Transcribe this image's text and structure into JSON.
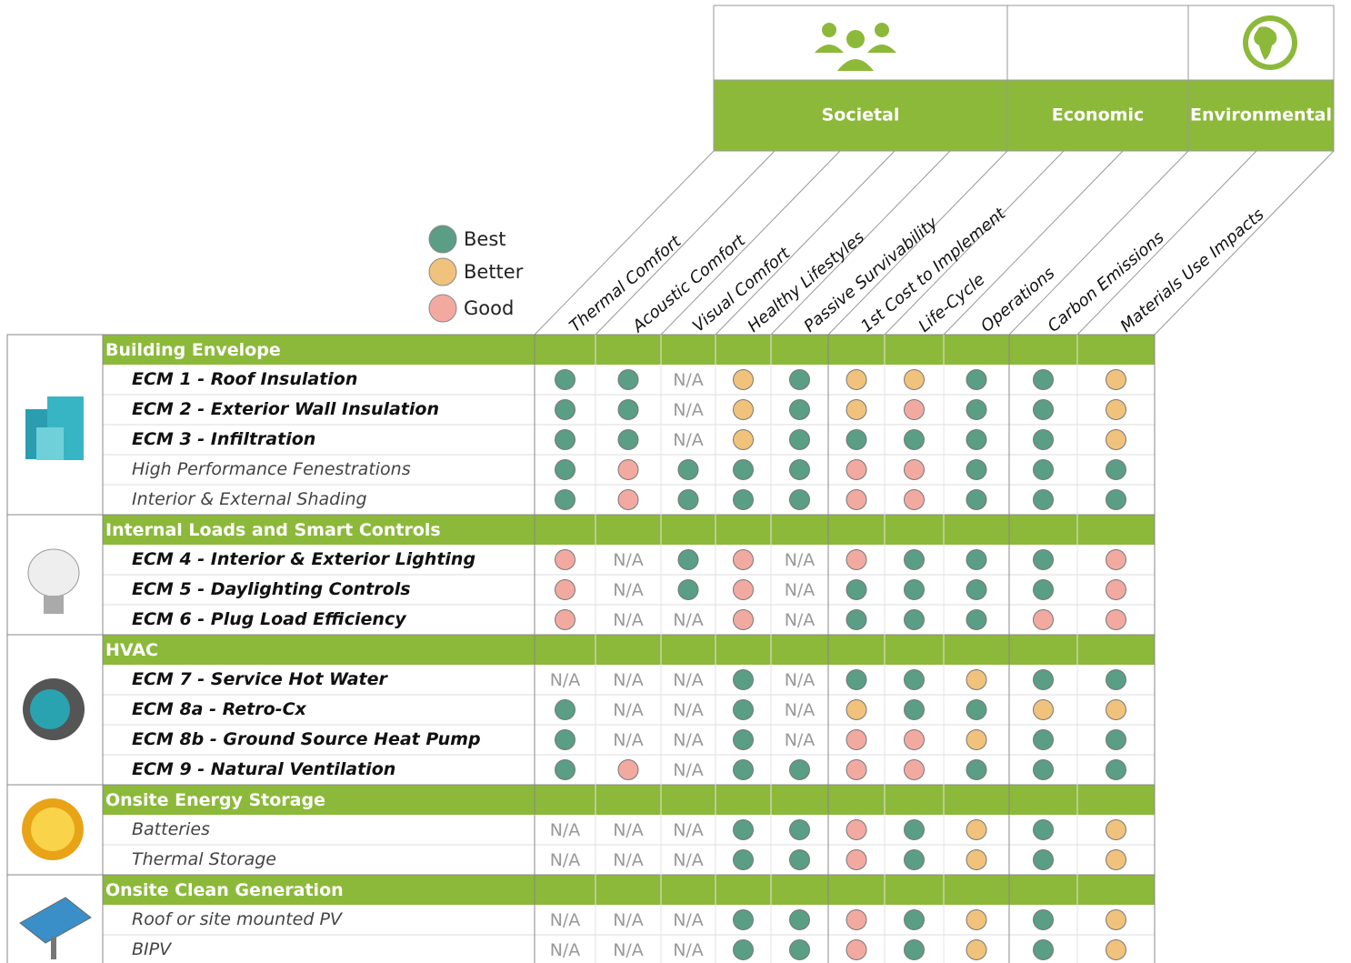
{
  "header_groups": [
    {
      "label": "Societal",
      "span": 5
    },
    {
      "label": "Economic",
      "span": 3
    },
    {
      "label": "Environmental",
      "span": 2
    }
  ],
  "legend": [
    {
      "label": "Best",
      "color": "#5a9e85"
    },
    {
      "label": "Better",
      "color": "#f0c27b"
    },
    {
      "label": "Good",
      "color": "#f2aaa0"
    }
  ],
  "columns": [
    "Thermal Comfort",
    "Acoustic Comfort",
    "Visual Comfort",
    "Healthy Lifestyles",
    "Passive Survivability",
    "1st Cost to Implement",
    "Life-Cycle",
    "Operations",
    "Carbon Emissions",
    "Materials Use Impacts"
  ],
  "sections": [
    {
      "title": "Building Envelope",
      "rows": [
        {
          "label": "ECM 1 - Roof Insulation",
          "bold": true,
          "cells": [
            "Best",
            "Best",
            "N/A",
            "Better",
            "Best",
            "Better",
            "Better",
            "Best",
            "Best",
            "Better"
          ]
        },
        {
          "label": "ECM 2 - Exterior Wall Insulation",
          "bold": true,
          "cells": [
            "Best",
            "Best",
            "N/A",
            "Better",
            "Best",
            "Better",
            "Good",
            "Best",
            "Best",
            "Better"
          ]
        },
        {
          "label": "ECM 3 - Infiltration",
          "bold": true,
          "cells": [
            "Best",
            "Best",
            "N/A",
            "Better",
            "Best",
            "Best",
            "Best",
            "Best",
            "Best",
            "Better"
          ]
        },
        {
          "label": "High Performance Fenestrations",
          "bold": false,
          "cells": [
            "Best",
            "Good",
            "Best",
            "Best",
            "Best",
            "Good",
            "Good",
            "Best",
            "Best",
            "Best"
          ]
        },
        {
          "label": "Interior & External Shading",
          "bold": false,
          "cells": [
            "Best",
            "Good",
            "Best",
            "Best",
            "Best",
            "Good",
            "Good",
            "Best",
            "Best",
            "Best"
          ]
        }
      ]
    },
    {
      "title": "Internal Loads and Smart Controls",
      "rows": [
        {
          "label": "ECM 4 - Interior & Exterior Lighting",
          "bold": true,
          "cells": [
            "Good",
            "N/A",
            "Best",
            "Good",
            "N/A",
            "Good",
            "Best",
            "Best",
            "Best",
            "Good"
          ]
        },
        {
          "label": "ECM 5 - Daylighting Controls",
          "bold": true,
          "cells": [
            "Good",
            "N/A",
            "Best",
            "Good",
            "N/A",
            "Best",
            "Best",
            "Best",
            "Best",
            "Good"
          ]
        },
        {
          "label": "ECM 6 - Plug Load Efficiency",
          "bold": true,
          "cells": [
            "Good",
            "N/A",
            "N/A",
            "Good",
            "N/A",
            "Best",
            "Best",
            "Best",
            "Good",
            "Good"
          ]
        }
      ]
    },
    {
      "title": "HVAC",
      "rows": [
        {
          "label": "ECM 7 - Service Hot Water",
          "bold": true,
          "cells": [
            "N/A",
            "N/A",
            "N/A",
            "Best",
            "N/A",
            "Best",
            "Best",
            "Better",
            "Best",
            "Best"
          ]
        },
        {
          "label": "ECM 8a - Retro-Cx",
          "bold": true,
          "cells": [
            "Best",
            "N/A",
            "N/A",
            "Best",
            "N/A",
            "Better",
            "Best",
            "Best",
            "Better",
            "Better"
          ]
        },
        {
          "label": "ECM 8b - Ground Source Heat Pump",
          "bold": true,
          "cells": [
            "Best",
            "N/A",
            "N/A",
            "Best",
            "N/A",
            "Good",
            "Good",
            "Better",
            "Best",
            "Best"
          ]
        },
        {
          "label": "ECM 9 - Natural Ventilation",
          "bold": true,
          "cells": [
            "Best",
            "Good",
            "N/A",
            "Best",
            "Best",
            "Good",
            "Good",
            "Best",
            "Best",
            "Best"
          ]
        }
      ]
    },
    {
      "title": "Onsite Energy Storage",
      "rows": [
        {
          "label": "Batteries",
          "bold": false,
          "cells": [
            "N/A",
            "N/A",
            "N/A",
            "Best",
            "Best",
            "Good",
            "Best",
            "Better",
            "Best",
            "Better"
          ]
        },
        {
          "label": "Thermal Storage",
          "bold": false,
          "cells": [
            "N/A",
            "N/A",
            "N/A",
            "Best",
            "Best",
            "Good",
            "Best",
            "Better",
            "Best",
            "Better"
          ]
        }
      ]
    },
    {
      "title": "Onsite Clean Generation",
      "rows": [
        {
          "label": "Roof or site mounted PV",
          "bold": false,
          "cells": [
            "N/A",
            "N/A",
            "N/A",
            "Best",
            "Best",
            "Good",
            "Best",
            "Better",
            "Best",
            "Better"
          ]
        },
        {
          "label": "BIPV",
          "bold": false,
          "cells": [
            "N/A",
            "N/A",
            "N/A",
            "Best",
            "Best",
            "Good",
            "Best",
            "Better",
            "Best",
            "Better"
          ]
        }
      ]
    }
  ]
}
